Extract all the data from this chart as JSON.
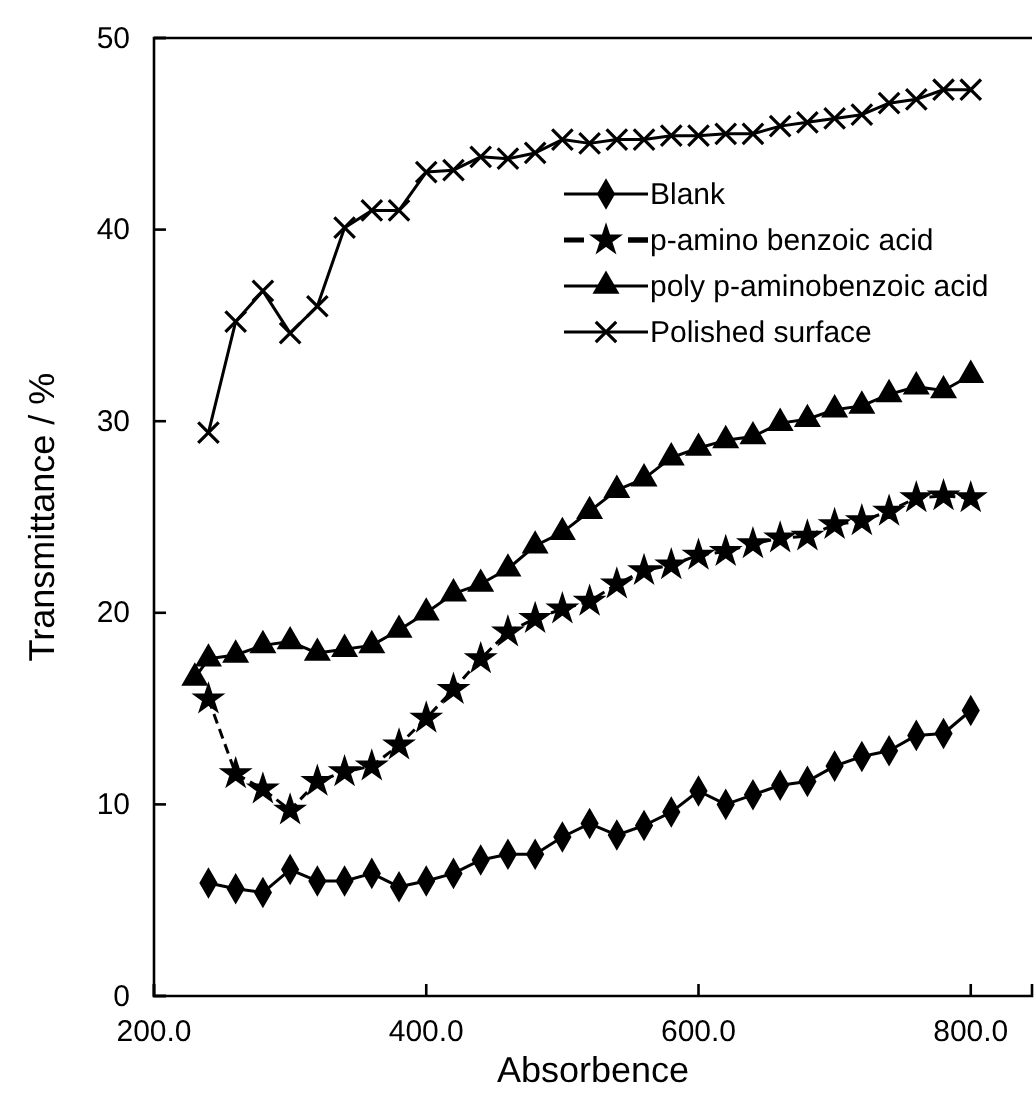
{
  "chart_data": {
    "type": "line",
    "xlabel": "Absorbence",
    "ylabel": "Transmittance / %",
    "xlim": [
      200,
      845
    ],
    "xticks": [
      {
        "value": 200,
        "label": "200.0"
      },
      {
        "value": 400,
        "label": "400.0"
      },
      {
        "value": 600,
        "label": "600.0"
      },
      {
        "value": 800,
        "label": "800.0"
      }
    ],
    "ylim": [
      0,
      50
    ],
    "yticks": [
      0,
      10,
      20,
      30,
      40,
      50
    ],
    "grid": false,
    "legend": "top right",
    "series": [
      {
        "name": "Blank",
        "color": "#000000",
        "marker": "diamond",
        "line_style": "solid",
        "x": [
          240,
          260,
          280,
          300,
          320,
          340,
          360,
          380,
          400,
          420,
          440,
          460,
          480,
          500,
          520,
          540,
          560,
          580,
          600,
          620,
          640,
          660,
          680,
          700,
          720,
          740,
          760,
          780,
          800
        ],
        "values": [
          5.9,
          5.6,
          5.4,
          6.6,
          6.0,
          6.0,
          6.4,
          5.7,
          6.0,
          6.4,
          7.1,
          7.4,
          7.4,
          8.3,
          9.0,
          8.4,
          8.9,
          9.6,
          10.7,
          10.0,
          10.5,
          11.0,
          11.2,
          12.0,
          12.5,
          12.8,
          13.6,
          13.7,
          14.9
        ]
      },
      {
        "name": "p-amino benzoic acid",
        "color": "#000000",
        "marker": "star",
        "line_style": "dashed",
        "x": [
          240,
          260,
          280,
          300,
          320,
          340,
          360,
          380,
          400,
          420,
          440,
          460,
          480,
          500,
          520,
          540,
          560,
          580,
          600,
          620,
          640,
          660,
          680,
          700,
          720,
          740,
          760,
          780,
          800
        ],
        "values": [
          15.5,
          11.6,
          10.8,
          9.7,
          11.2,
          11.7,
          12.0,
          13.1,
          14.5,
          16.0,
          17.6,
          19.0,
          19.7,
          20.2,
          20.6,
          21.5,
          22.2,
          22.5,
          23.0,
          23.2,
          23.6,
          23.9,
          24.0,
          24.6,
          24.8,
          25.3,
          26.0,
          26.1,
          26.0
        ]
      },
      {
        "name": "poly p-aminobenzoic acid",
        "color": "#000000",
        "marker": "triangle",
        "line_style": "solid",
        "x": [
          230,
          240,
          260,
          280,
          300,
          320,
          340,
          360,
          380,
          400,
          420,
          440,
          460,
          480,
          500,
          520,
          540,
          560,
          580,
          600,
          620,
          640,
          660,
          680,
          700,
          720,
          740,
          760,
          780,
          800
        ],
        "values": [
          16.6,
          17.6,
          17.8,
          18.3,
          18.5,
          17.9,
          18.1,
          18.3,
          19.1,
          20.0,
          21.0,
          21.5,
          22.3,
          23.5,
          24.2,
          25.3,
          26.4,
          27.0,
          28.1,
          28.6,
          29.0,
          29.2,
          29.9,
          30.1,
          30.6,
          30.8,
          31.4,
          31.8,
          31.6,
          32.4
        ]
      },
      {
        "name": "Polished surface",
        "color": "#000000",
        "marker": "cross",
        "line_style": "solid",
        "x": [
          240,
          260,
          280,
          300,
          320,
          340,
          360,
          380,
          400,
          420,
          440,
          460,
          480,
          500,
          520,
          540,
          560,
          580,
          600,
          620,
          640,
          660,
          680,
          700,
          720,
          740,
          760,
          780,
          800
        ],
        "values": [
          29.4,
          35.2,
          36.8,
          34.6,
          36.0,
          40.1,
          41.0,
          41.0,
          43.0,
          43.1,
          43.8,
          43.7,
          44.0,
          44.7,
          44.5,
          44.7,
          44.7,
          44.9,
          44.9,
          45.0,
          45.0,
          45.4,
          45.6,
          45.8,
          46.0,
          46.6,
          46.8,
          47.3,
          47.3
        ]
      }
    ]
  }
}
